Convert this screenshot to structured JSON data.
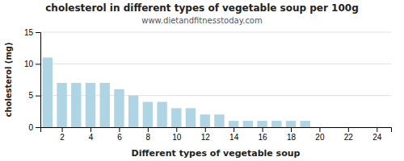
{
  "chart_data": {
    "type": "bar",
    "title": "cholesterol in different types of vegetable soup per 100g",
    "subtitle": "www.dietandfitnesstoday.com",
    "xlabel": "Different types of vegetable soup",
    "ylabel": "cholesterol (mg)",
    "x": [
      1,
      2,
      3,
      4,
      5,
      6,
      7,
      8,
      9,
      10,
      11,
      12,
      13,
      14,
      15,
      16,
      17,
      18,
      19
    ],
    "values": [
      11,
      7,
      7,
      7,
      7,
      6,
      5,
      4,
      4,
      3,
      3,
      2,
      2,
      1,
      1,
      1,
      1,
      1,
      1
    ],
    "color": "#afd4e4",
    "xlim": [
      0.5,
      25
    ],
    "ylim": [
      0,
      15
    ],
    "xticks": [
      2,
      4,
      6,
      8,
      10,
      12,
      14,
      16,
      18,
      20,
      22,
      24
    ],
    "yticks": [
      0,
      5,
      10,
      15
    ],
    "grid": true
  }
}
